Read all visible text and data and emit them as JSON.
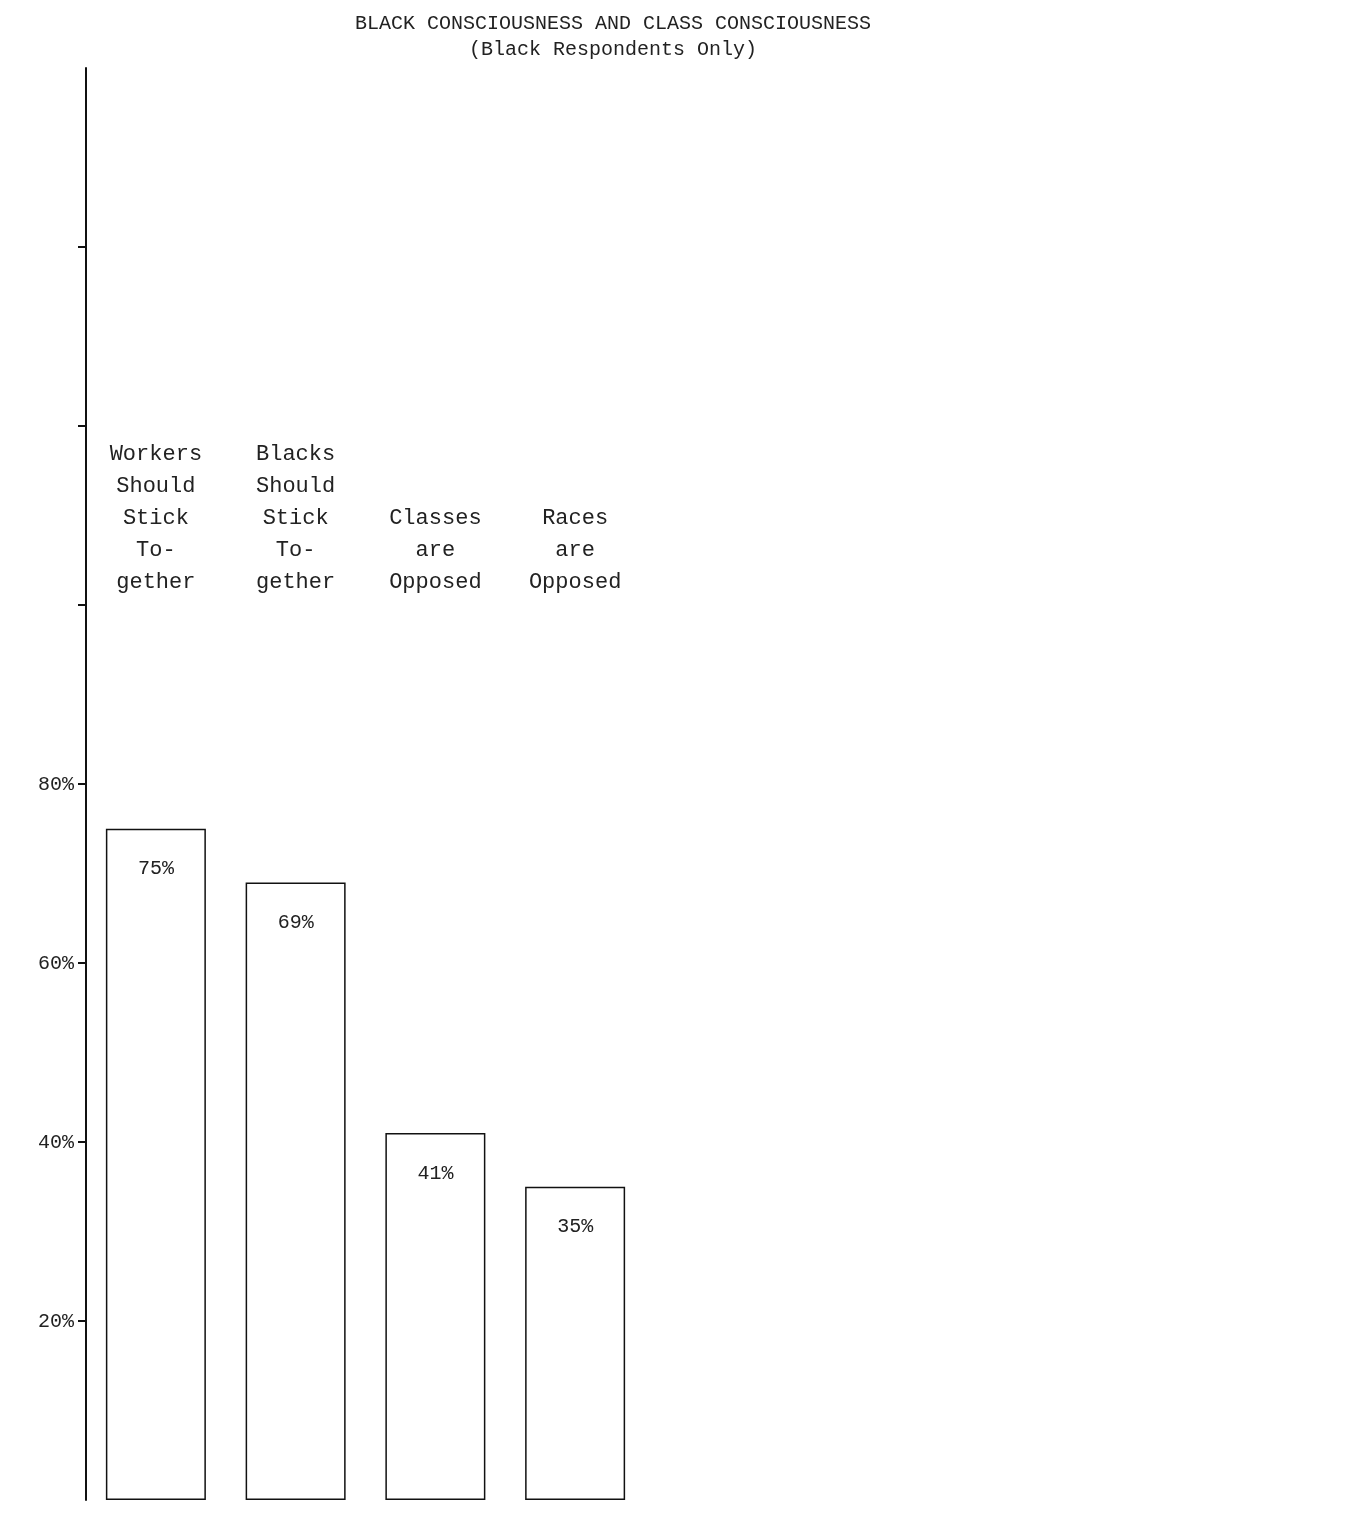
{
  "chart_data": {
    "type": "bar",
    "title": "BLACK CONSCIOUSNESS AND CLASS CONSCIOUSNESS",
    "subtitle": "(Black Respondents Only)",
    "categories": [
      "Workers\nShould\nStick\nTo-\ngether",
      "Blacks\nShould\nStick\nTo-\ngether",
      "Classes\nare\nOpposed",
      "Races\nare\nOpposed"
    ],
    "values": [
      75,
      69,
      41,
      35
    ],
    "value_labels": [
      "75%",
      "69%",
      "41%",
      "35%"
    ],
    "color": "#ffffff",
    "ylim": [
      0,
      160
    ],
    "yticks": [
      {
        "value": 20,
        "label": "20%"
      },
      {
        "value": 40,
        "label": "40%"
      },
      {
        "value": 60,
        "label": "60%"
      },
      {
        "value": 80,
        "label": "80%"
      },
      {
        "value": 100,
        "label": null
      },
      {
        "value": 120,
        "label": null
      },
      {
        "value": 140,
        "label": null
      }
    ],
    "grid": false
  }
}
